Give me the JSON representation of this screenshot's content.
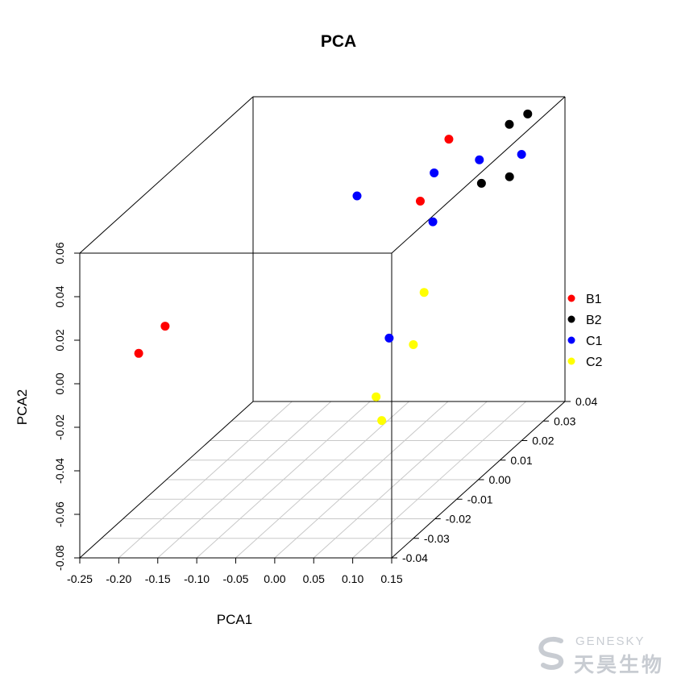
{
  "chart_data": {
    "type": "scatter3d",
    "title": "PCA",
    "xlabel": "PCA1",
    "ylabel": "PCA2",
    "zlabel": "",
    "xlim": [
      -0.25,
      0.15
    ],
    "ylim": [
      -0.08,
      0.06
    ],
    "zlim": [
      -0.04,
      0.04
    ],
    "x_ticks": [
      "-0.25",
      "-0.20",
      "-0.15",
      "-0.10",
      "-0.05",
      "0.00",
      "0.05",
      "0.10",
      "0.15"
    ],
    "y_ticks": [
      "-0.08",
      "-0.06",
      "-0.04",
      "-0.02",
      "0.00",
      "0.02",
      "0.04",
      "0.06"
    ],
    "z_ticks": [
      "-0.04",
      "-0.03",
      "-0.02",
      "-0.01",
      "0.00",
      "0.01",
      "0.02",
      "0.03",
      "0.04"
    ],
    "grid": "floor",
    "legend_position": "right",
    "series": [
      {
        "name": "B1",
        "color": "#ff0000",
        "points": [
          {
            "x": -0.21,
            "y": 0.004,
            "z": -0.015
          },
          {
            "x": -0.23,
            "y": -0.004,
            "z": -0.02
          },
          {
            "x": 0.015,
            "y": 0.045,
            "z": 0.035
          },
          {
            "x": 0.02,
            "y": 0.03,
            "z": 0.02
          }
        ]
      },
      {
        "name": "B2",
        "color": "#000000",
        "points": [
          {
            "x": 0.087,
            "y": 0.05,
            "z": 0.037
          },
          {
            "x": 0.105,
            "y": 0.053,
            "z": 0.039
          },
          {
            "x": 0.104,
            "y": 0.04,
            "z": 0.018
          },
          {
            "x": 0.14,
            "y": 0.043,
            "z": 0.018
          }
        ]
      },
      {
        "name": "C1",
        "color": "#0000ff",
        "points": [
          {
            "x": -0.05,
            "y": 0.036,
            "z": 0.016
          },
          {
            "x": 0.01,
            "y": 0.034,
            "z": 0.03
          },
          {
            "x": 0.05,
            "y": 0.025,
            "z": 0.015
          },
          {
            "x": 0.068,
            "y": 0.04,
            "z": 0.03
          },
          {
            "x": 0.136,
            "y": 0.047,
            "z": 0.025
          },
          {
            "x": 0.119,
            "y": 0.012,
            "z": -0.03
          }
        ]
      },
      {
        "name": "C2",
        "color": "#ffff00",
        "points": [
          {
            "x": 0.136,
            "y": 0.024,
            "z": -0.02
          },
          {
            "x": 0.15,
            "y": 0.009,
            "z": -0.03
          },
          {
            "x": 0.13,
            "y": -0.006,
            "z": -0.04
          },
          {
            "x": 0.14,
            "y": -0.016,
            "z": -0.041
          }
        ]
      }
    ]
  },
  "watermark": {
    "brand_latin": "GENESKY",
    "brand_cjk": "天昊生物",
    "icon": "genesky-swirl-logo"
  }
}
